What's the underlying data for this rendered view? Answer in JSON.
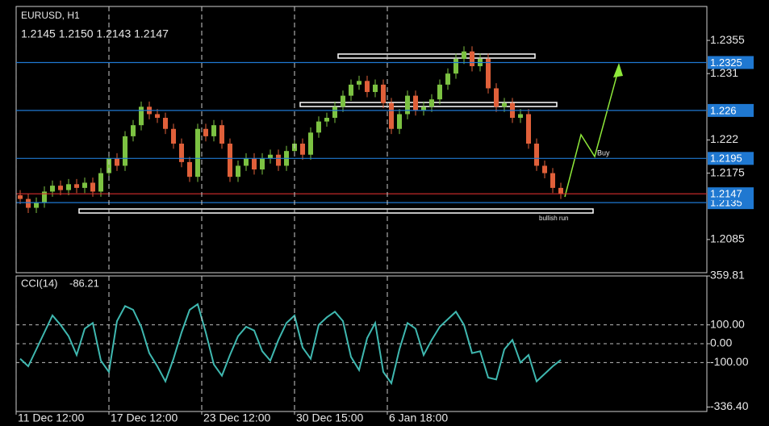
{
  "chart_data": [
    {
      "type": "candlestick",
      "title": "EURUSD, H1",
      "subtitle": "1.2145 1.2150 1.2143 1.2147",
      "open": [
        1.2145,
        1.214,
        1.2128,
        1.2135,
        1.215,
        1.2158,
        1.2152,
        1.216,
        1.2155,
        1.2162,
        1.215,
        1.2175,
        1.2195,
        1.2185,
        1.2225,
        1.224,
        1.2265,
        1.2255,
        1.225,
        1.2235,
        1.2215,
        1.219,
        1.217,
        1.2235,
        1.2225,
        1.224,
        1.2215,
        1.217,
        1.2185,
        1.2195,
        1.218,
        1.2195,
        1.22,
        1.2185,
        1.2205,
        1.2215,
        1.22,
        1.223,
        1.2245,
        1.225,
        1.2265,
        1.228,
        1.2295,
        1.23,
        1.2285,
        1.2295,
        1.227,
        1.2235,
        1.2255,
        1.228,
        1.226,
        1.2265,
        1.2275,
        1.2295,
        1.231,
        1.233,
        1.234,
        1.232,
        1.233,
        1.229,
        1.2265,
        1.227,
        1.225,
        1.2255,
        1.2215,
        1.2185,
        1.2175,
        1.2155
      ],
      "high": [
        1.2152,
        1.2147,
        1.2142,
        1.2157,
        1.2165,
        1.2165,
        1.2167,
        1.2167,
        1.2169,
        1.2169,
        1.2182,
        1.2202,
        1.2202,
        1.2232,
        1.2247,
        1.2272,
        1.2272,
        1.2262,
        1.2257,
        1.2242,
        1.2222,
        1.2197,
        1.2242,
        1.2242,
        1.2247,
        1.2247,
        1.2222,
        1.2192,
        1.2202,
        1.2202,
        1.2202,
        1.2207,
        1.2207,
        1.2212,
        1.2222,
        1.2222,
        1.2237,
        1.2252,
        1.2257,
        1.2272,
        1.2287,
        1.2302,
        1.2307,
        1.2307,
        1.2302,
        1.2302,
        1.2277,
        1.2262,
        1.2287,
        1.2287,
        1.2272,
        1.2282,
        1.2302,
        1.2317,
        1.2337,
        1.2347,
        1.2347,
        1.2337,
        1.2337,
        1.2297,
        1.2277,
        1.2277,
        1.2262,
        1.2262,
        1.2222,
        1.2192,
        1.2182,
        1.2162
      ],
      "low": [
        1.2133,
        1.2121,
        1.2121,
        1.2128,
        1.2143,
        1.2145,
        1.2145,
        1.2148,
        1.2148,
        1.2143,
        1.2143,
        1.2168,
        1.2178,
        1.2178,
        1.2218,
        1.2233,
        1.2248,
        1.2243,
        1.2228,
        1.2208,
        1.2183,
        1.2163,
        1.2163,
        1.2218,
        1.2218,
        1.2208,
        1.2163,
        1.2163,
        1.2178,
        1.2173,
        1.2173,
        1.2188,
        1.2178,
        1.2178,
        1.2198,
        1.2193,
        1.2193,
        1.2223,
        1.2238,
        1.2243,
        1.2258,
        1.2273,
        1.2288,
        1.2278,
        1.2278,
        1.2263,
        1.2228,
        1.2228,
        1.2248,
        1.2253,
        1.2253,
        1.2258,
        1.2268,
        1.2288,
        1.2303,
        1.2323,
        1.2313,
        1.2313,
        1.2283,
        1.2258,
        1.2258,
        1.2243,
        1.2243,
        1.2208,
        1.2178,
        1.2168,
        1.2148,
        1.214
      ],
      "close": [
        1.214,
        1.2128,
        1.2135,
        1.215,
        1.2158,
        1.2152,
        1.216,
        1.2155,
        1.2162,
        1.215,
        1.2175,
        1.2195,
        1.2185,
        1.2225,
        1.224,
        1.2265,
        1.2255,
        1.225,
        1.2235,
        1.2215,
        1.219,
        1.217,
        1.2235,
        1.2225,
        1.224,
        1.2215,
        1.217,
        1.2185,
        1.2195,
        1.218,
        1.2195,
        1.22,
        1.2185,
        1.2205,
        1.2215,
        1.22,
        1.223,
        1.2245,
        1.225,
        1.2265,
        1.228,
        1.2295,
        1.23,
        1.2285,
        1.2295,
        1.227,
        1.2235,
        1.2255,
        1.228,
        1.226,
        1.2265,
        1.2275,
        1.2295,
        1.231,
        1.233,
        1.234,
        1.232,
        1.233,
        1.229,
        1.2265,
        1.227,
        1.225,
        1.2255,
        1.2215,
        1.2185,
        1.2175,
        1.2155,
        1.2147
      ],
      "up_color": "#7cc242",
      "down_color": "#e0603a",
      "ylim": [
        1.204,
        1.2401
      ],
      "yticks": [
        1.2355,
        1.231,
        1.222,
        1.2175,
        1.2085
      ],
      "levels": [
        1.2325,
        1.226,
        1.2195,
        1.2135
      ],
      "level_color": "#1f78d1",
      "price": 1.2147,
      "price_color": "#d62d2d",
      "annotations": [
        "Buy",
        "bullish run"
      ]
    },
    {
      "type": "line",
      "name": "CCI(14)",
      "last_value": -86.21,
      "color": "#3fb8b0",
      "values": [
        -80,
        -120,
        -30,
        60,
        150,
        100,
        40,
        -60,
        80,
        110,
        -90,
        -150,
        120,
        200,
        180,
        90,
        -50,
        -120,
        -200,
        -80,
        60,
        180,
        210,
        60,
        -110,
        -170,
        -60,
        40,
        90,
        70,
        -40,
        -90,
        20,
        110,
        150,
        -20,
        -80,
        100,
        140,
        170,
        120,
        -70,
        -140,
        30,
        110,
        -150,
        -210,
        -30,
        110,
        80,
        -60,
        20,
        90,
        130,
        170,
        100,
        -50,
        -40,
        -180,
        -190,
        -30,
        20,
        -100,
        -60,
        -200,
        -160,
        -120,
        -86.21
      ],
      "ylim": [
        -360,
        360
      ],
      "yticks": [
        359.81,
        {
          "value": 100,
          "label": "100.00"
        },
        {
          "value": 0,
          "label": "0.00"
        },
        {
          "value": -100,
          "label": "-100.00"
        },
        {
          "value": -336.4,
          "label": "-336.40"
        }
      ],
      "xlim": [
        -0.5,
        85.1
      ],
      "xticks": [
        {
          "value": -0.5,
          "label": "11 Dec 12:00"
        },
        {
          "value": 11,
          "label": "17 Dec 12:00"
        },
        {
          "value": 22.5,
          "label": "23 Dec 12:00"
        },
        {
          "value": 34,
          "label": "30 Dec 15:00"
        },
        {
          "value": 45.5,
          "label": "6 Jan 18:00"
        }
      ]
    }
  ]
}
